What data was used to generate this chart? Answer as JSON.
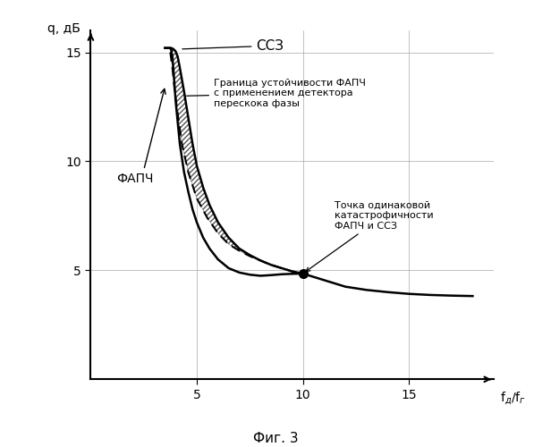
{
  "title": "",
  "xlabel_main": "f",
  "xlabel_sub": "д",
  "xlabel_sup": "г",
  "ylabel": "q, дБ",
  "xlim": [
    0,
    19
  ],
  "ylim": [
    0,
    16
  ],
  "xticks": [
    5,
    10,
    15
  ],
  "yticks": [
    5,
    10,
    15
  ],
  "background_color": "#ffffff",
  "caption": "Фиг. 3",
  "label_FAPC": "ФАПЧ",
  "label_SSZ": "ССЗ",
  "label_boundary": "Граница устойчивости ФАПЧ\nс применением детектора\nперескока фазы",
  "label_point": "Точка одинаковой\nкатастрофичности\nФАПЧ и ССЗ",
  "ssz_curve_x": [
    3.5,
    3.52,
    3.55,
    3.6,
    3.7,
    3.8,
    3.9,
    4.0,
    4.1,
    4.2,
    4.4,
    4.6,
    4.8,
    5.0,
    5.3,
    5.6,
    6.0,
    6.5,
    7.0,
    7.5,
    8.0,
    8.5,
    9.0,
    9.5,
    10.0,
    11.0,
    12.0,
    13.0,
    14.0,
    15.0,
    16.0,
    17.0,
    18.0
  ],
  "ssz_curve_y": [
    15.2,
    15.2,
    15.2,
    15.2,
    15.2,
    15.2,
    15.15,
    15.05,
    14.8,
    14.3,
    13.2,
    12.0,
    10.8,
    9.8,
    8.8,
    8.0,
    7.2,
    6.5,
    6.0,
    5.7,
    5.45,
    5.25,
    5.1,
    4.95,
    4.85,
    4.55,
    4.25,
    4.1,
    4.0,
    3.92,
    3.87,
    3.84,
    3.82
  ],
  "fapc_solid_x": [
    3.5,
    3.52,
    3.55,
    3.6,
    3.7,
    3.75,
    3.8,
    3.85,
    3.9,
    4.0,
    4.1,
    4.2,
    4.4,
    4.6,
    4.8,
    5.0,
    5.3,
    5.6,
    6.0,
    6.5,
    7.0,
    7.5,
    8.0,
    8.5,
    9.0,
    9.5,
    10.0
  ],
  "fapc_solid_y": [
    15.2,
    15.2,
    15.2,
    15.2,
    15.2,
    15.2,
    15.1,
    14.8,
    14.2,
    12.8,
    11.8,
    10.8,
    9.5,
    8.6,
    7.8,
    7.2,
    6.5,
    6.0,
    5.5,
    5.1,
    4.9,
    4.8,
    4.75,
    4.78,
    4.82,
    4.84,
    4.85
  ],
  "fapc_dashed_x": [
    3.75,
    3.85,
    3.95,
    4.1,
    4.3,
    4.6,
    5.0,
    5.5,
    6.0,
    6.5,
    7.0,
    7.5,
    8.0,
    8.5,
    9.0,
    9.5,
    10.0
  ],
  "fapc_dashed_y": [
    15.0,
    14.3,
    13.3,
    12.2,
    10.8,
    9.5,
    8.3,
    7.4,
    6.7,
    6.2,
    5.9,
    5.65,
    5.45,
    5.25,
    5.1,
    4.95,
    4.85
  ],
  "ssz_tail_x": [
    10.0,
    11.0,
    12.0,
    13.0,
    14.0,
    15.0,
    16.0,
    17.0,
    18.0
  ],
  "ssz_tail_y": [
    4.85,
    4.55,
    4.25,
    4.1,
    4.0,
    3.92,
    3.87,
    3.84,
    3.82
  ],
  "special_point_x": 10.0,
  "special_point_y": 4.85
}
